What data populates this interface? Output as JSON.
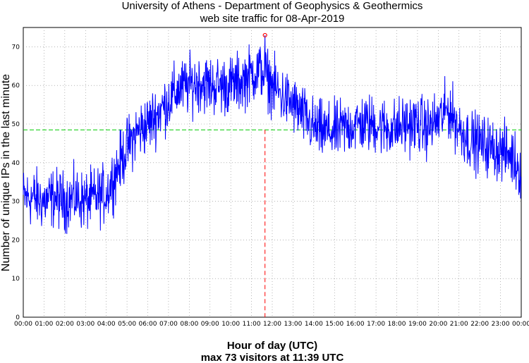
{
  "chart_data": {
    "type": "line",
    "title": "University of Athens - Department of Geophysics & Geothermics",
    "subtitle": "web site traffic for 08-Apr-2019",
    "xlabel": "Hour of day (UTC)",
    "ylabel": "Number of unique IPs in the last minute",
    "footer": "max 73 visitors at 11:39 UTC",
    "xlim": [
      "00:00",
      "24:00"
    ],
    "ylim": [
      0,
      75
    ],
    "grid": true,
    "x_ticks": [
      "00:00",
      "01:00",
      "02:00",
      "03:00",
      "04:00",
      "05:00",
      "06:00",
      "07:00",
      "08:00",
      "09:00",
      "10:00",
      "11:00",
      "12:00",
      "13:00",
      "14:00",
      "15:00",
      "16:00",
      "17:00",
      "18:00",
      "19:00",
      "20:00",
      "21:00",
      "22:00",
      "23:00",
      "00:00"
    ],
    "y_ticks": [
      0,
      10,
      20,
      30,
      40,
      50,
      60,
      70
    ],
    "mean_line": 48.5,
    "max": {
      "time": "11:39",
      "value": 73
    },
    "series": [
      {
        "color": "#0000ff",
        "x": [
          "00:00",
          "00:30",
          "01:00",
          "01:30",
          "02:00",
          "02:30",
          "03:00",
          "03:30",
          "04:00",
          "04:30",
          "05:00",
          "05:30",
          "06:00",
          "06:30",
          "07:00",
          "07:30",
          "08:00",
          "08:30",
          "09:00",
          "09:30",
          "10:00",
          "10:30",
          "11:00",
          "11:30",
          "12:00",
          "12:30",
          "13:00",
          "13:30",
          "14:00",
          "14:30",
          "15:00",
          "15:30",
          "16:00",
          "16:30",
          "17:00",
          "17:30",
          "18:00",
          "18:30",
          "19:00",
          "19:30",
          "20:00",
          "20:30",
          "21:00",
          "21:30",
          "22:00",
          "22:30",
          "23:00",
          "23:30",
          "24:00"
        ],
        "values": [
          31,
          31,
          30,
          31,
          30,
          31,
          30,
          31,
          32,
          38,
          44,
          48,
          50,
          53,
          56,
          59,
          60,
          61,
          60,
          60,
          60,
          61,
          63,
          64,
          60,
          57,
          55,
          52,
          49,
          48,
          48,
          49,
          50,
          50,
          50,
          49,
          49,
          50,
          50,
          49,
          51,
          54,
          49,
          46,
          45,
          44,
          43,
          42,
          38
        ]
      }
    ],
    "colors": {
      "mean_line": "#00cc00",
      "max_marker": "#ff0000",
      "grid": "#888888"
    }
  }
}
